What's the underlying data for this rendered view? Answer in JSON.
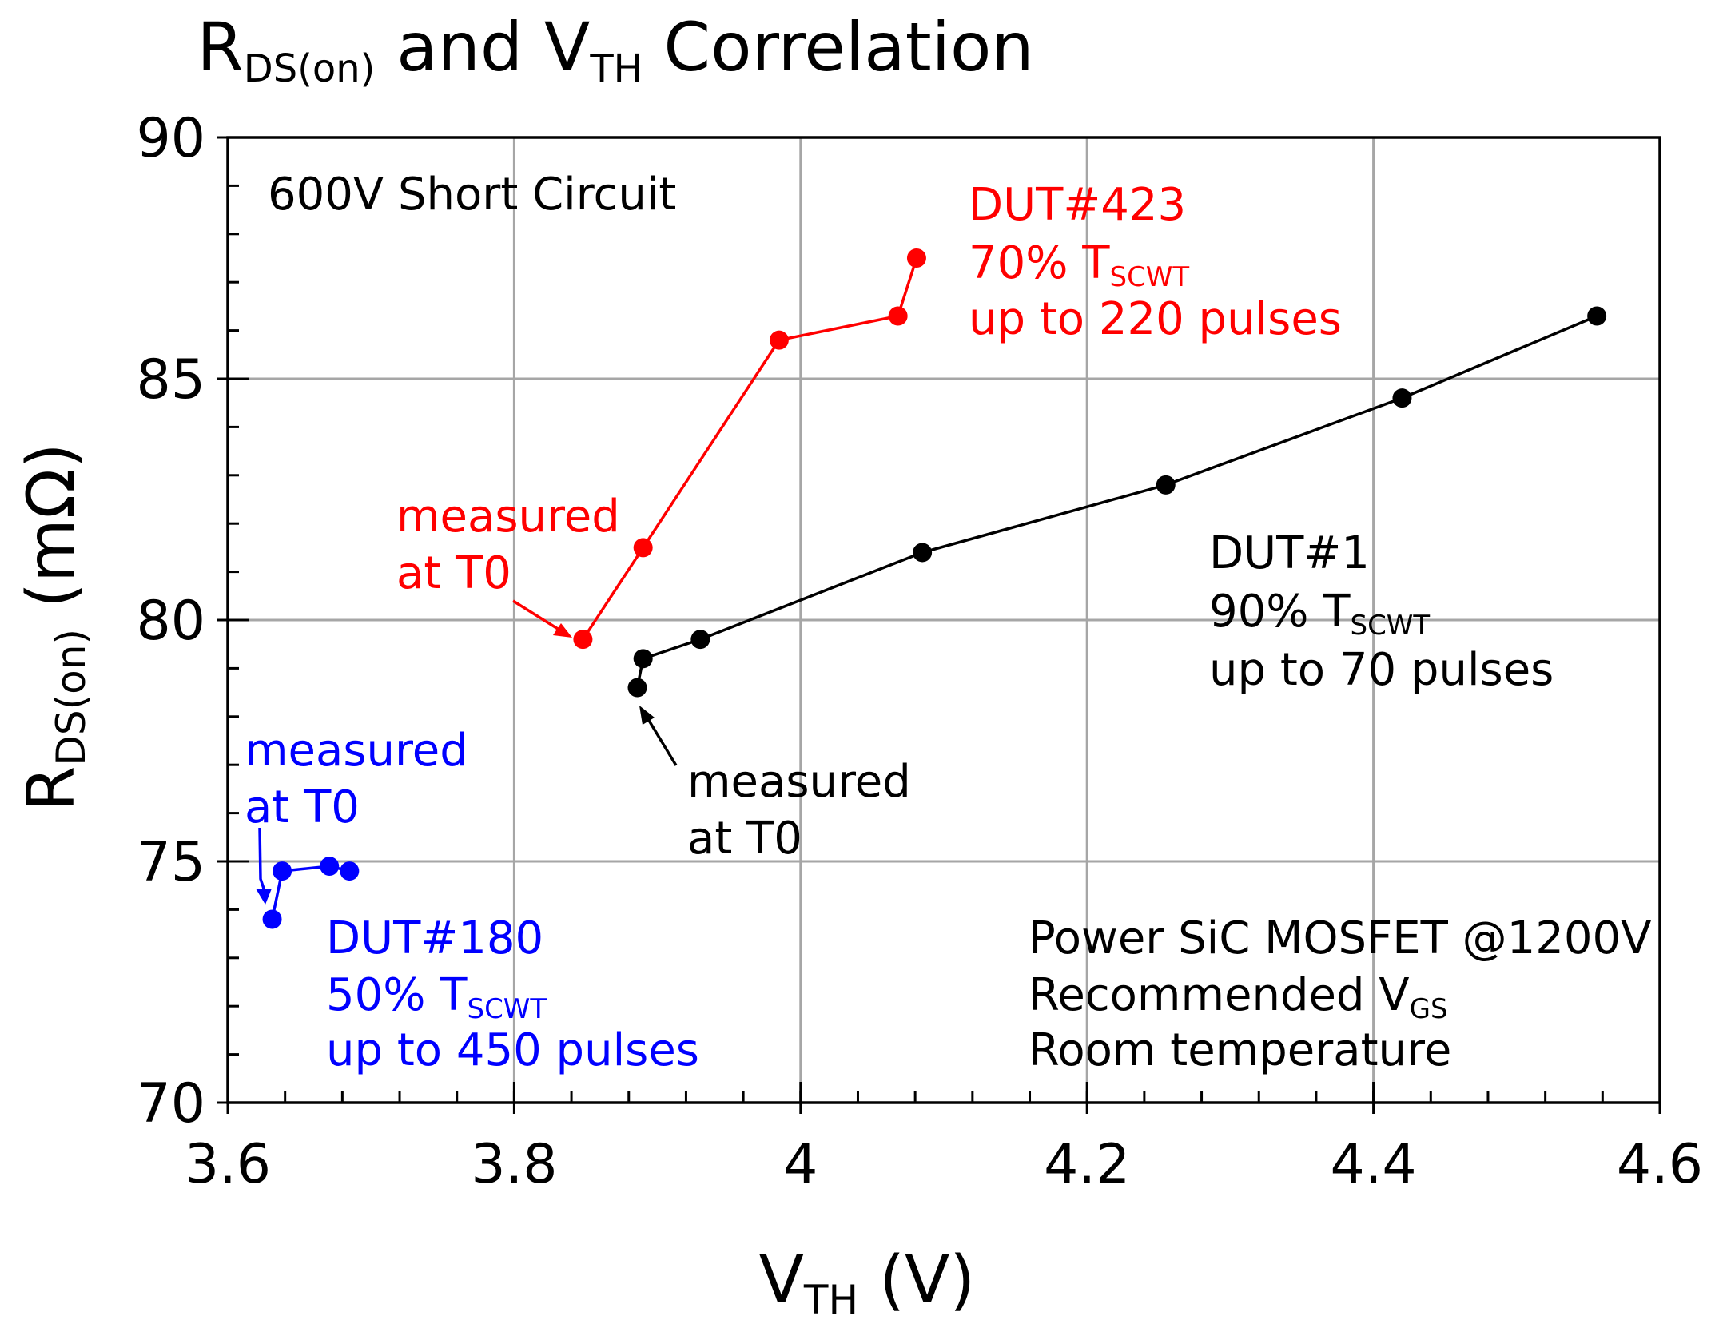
{
  "chart_data": {
    "type": "line",
    "title": {
      "prefix": "R",
      "prefix_sub": "DS(on)",
      "middle": " and V",
      "middle_sub": "TH",
      "suffix": " Correlation"
    },
    "xlabel": {
      "main": "V",
      "sub": "TH",
      "rest": " (V)"
    },
    "ylabel": {
      "main": "R",
      "sub": "DS(on)",
      "rest": " (mΩ)"
    },
    "xlim": [
      3.6,
      4.6
    ],
    "ylim": [
      70,
      90
    ],
    "x_ticks": [
      "3.6",
      "3.8",
      "4",
      "4.2",
      "4.4",
      "4.6"
    ],
    "y_ticks": [
      "70",
      "75",
      "80",
      "85",
      "90"
    ],
    "x_tick_values": [
      3.6,
      3.8,
      4.0,
      4.2,
      4.4,
      4.6
    ],
    "y_tick_values": [
      70,
      75,
      80,
      85,
      90
    ],
    "x_minor_step": 0.04,
    "y_minor_step": 1,
    "grid": true,
    "series": [
      {
        "name": "DUT#423",
        "color": "#ff0000",
        "x": [
          3.848,
          3.89,
          3.985,
          4.068,
          4.081
        ],
        "y": [
          79.6,
          81.5,
          85.8,
          86.3,
          87.5
        ]
      },
      {
        "name": "DUT#1",
        "color": "#000000",
        "x": [
          3.886,
          3.89,
          3.93,
          4.085,
          4.255,
          4.42,
          4.556
        ],
        "y": [
          78.6,
          79.2,
          79.6,
          81.4,
          82.8,
          84.6,
          86.3
        ]
      },
      {
        "name": "DUT#180",
        "color": "#0000ff",
        "x": [
          3.631,
          3.638,
          3.671,
          3.685
        ],
        "y": [
          73.8,
          74.8,
          74.9,
          74.8
        ]
      }
    ],
    "annotations": {
      "condition": "600V Short Circuit",
      "dut423": {
        "name": "DUT#423",
        "pct": "70% T",
        "pct_sub": "SCWT",
        "pulses": "up to 220 pulses",
        "color": "#ff0000"
      },
      "dut1": {
        "name": "DUT#1",
        "pct": "90% T",
        "pct_sub": "SCWT",
        "pulses": "up to 70 pulses",
        "color": "#000000"
      },
      "dut180": {
        "name": "DUT#180",
        "pct": "50% T",
        "pct_sub": "SCWT",
        "pulses": "up to 450 pulses",
        "color": "#0000ff"
      },
      "t0_red": {
        "line1": "measured",
        "line2": "at T0"
      },
      "t0_black": {
        "line1": "measured",
        "line2": "at T0"
      },
      "t0_blue": {
        "line1": "measured",
        "line2": "at T0"
      },
      "device": {
        "line1": "Power SiC MOSFET @1200V",
        "line2": "Recommended V",
        "line2_sub": "GS",
        "line3": "Room temperature"
      }
    }
  }
}
